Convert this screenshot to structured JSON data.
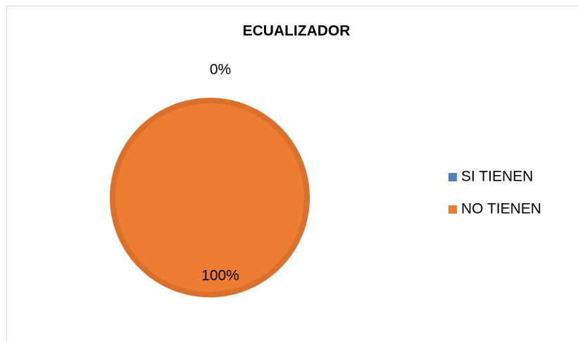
{
  "chart_data": {
    "type": "pie",
    "title": "ECUALIZADOR",
    "categories": [
      "SI TIENEN",
      "NO TIENEN"
    ],
    "values": [
      0,
      100
    ],
    "value_labels": [
      "0%",
      "100%"
    ],
    "colors": [
      "#4f81bd",
      "#ed7d31"
    ],
    "legend": "right"
  }
}
